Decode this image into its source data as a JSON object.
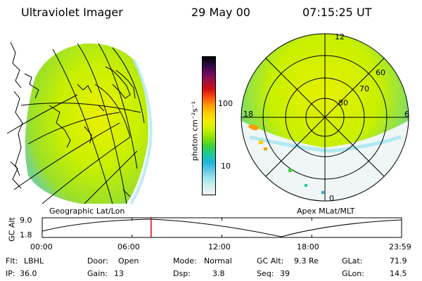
{
  "header": {
    "instrument": "Ultraviolet Imager",
    "date": "29 May 00",
    "time": "07:15:25 UT"
  },
  "left_panel": {
    "caption": "Geographic Lat/Lon"
  },
  "right_panel": {
    "caption": "Apex MLat/MLT",
    "mlt_labels": [
      "12",
      "18",
      "6",
      "0"
    ],
    "mlat_labels": [
      "60",
      "70",
      "80"
    ]
  },
  "colorbar": {
    "unit_label": "photon cm⁻²s⁻¹",
    "tick_labels": [
      "100",
      "10"
    ],
    "colors": [
      "#000000",
      "#2a0a40",
      "#6a0a60",
      "#a01040",
      "#d01010",
      "#ff5010",
      "#ff9b00",
      "#ffd000",
      "#f0f000",
      "#c8f000",
      "#8ce000",
      "#3cd23c",
      "#1ec896",
      "#20b4dc",
      "#64c8e6",
      "#a0e6f0",
      "#d2f0f0",
      "#eef6f6"
    ]
  },
  "altitude_plot": {
    "ylabel": "GC Alt",
    "y_ticks": [
      "9.0",
      "1.8"
    ],
    "x_ticks": [
      "00:00",
      "06:00",
      "12:00",
      "18:00",
      "23:59"
    ],
    "current_time_fraction": 0.303
  },
  "status": {
    "row1": [
      {
        "label": "Flt:",
        "value": "LBHL"
      },
      {
        "label": "Door:",
        "value": "Open"
      },
      {
        "label": "Mode:",
        "value": "Normal"
      },
      {
        "label": "GC Alt:",
        "value": "9.3 Re"
      },
      {
        "label": "GLat:",
        "value": "71.9"
      }
    ],
    "row2": [
      {
        "label": "IP:",
        "value": "36.0"
      },
      {
        "label": "Gain:",
        "value": "13"
      },
      {
        "label": "Dsp:",
        "value": "3.8"
      },
      {
        "label": "Seq:",
        "value": "39"
      },
      {
        "label": "GLon:",
        "value": "14.5"
      }
    ]
  }
}
